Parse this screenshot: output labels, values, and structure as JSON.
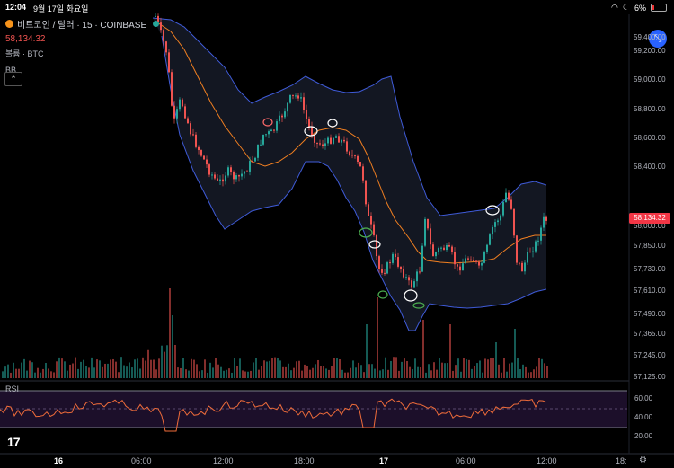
{
  "status_bar": {
    "time": "12:04",
    "date": "9월 17일 화요일",
    "battery": "6%"
  },
  "legend": {
    "symbol": "비트코인 / 달러 · 15 · COINBASE",
    "price": "58,134.32",
    "volume_label": "볼륨 · BTC",
    "bb_label": "BB"
  },
  "price_axis": {
    "ticks": [
      "59,200.00",
      "59,000.00",
      "58,800.00",
      "58,600.00",
      "58,400.00",
      "58,000.00",
      "57,850.00",
      "57,730.00",
      "57,610.00",
      "57,490.00",
      "57,365.00",
      "57,245.00",
      "57,125.00"
    ],
    "top_partial": "59,400.00",
    "last_price": "58,134.32"
  },
  "rsi": {
    "label": "RSI",
    "ticks": [
      "60.00",
      "40.00",
      "20.00"
    ]
  },
  "time_axis": {
    "labels": [
      "16",
      "06:00",
      "12:00",
      "18:00",
      "17",
      "06:00",
      "12:00",
      "18:"
    ]
  },
  "colors": {
    "up": "#26a69a",
    "down": "#ef5350",
    "band": "#3f5bd8",
    "basis": "#f07f21",
    "rsi_line": "#ef6c3a",
    "rsi_fill": "#1c0f2a"
  },
  "icons": {
    "fullscreen": "collapse-arrows-icon",
    "collapse": "chevron-up-icon",
    "settings": "gear-icon",
    "logo": "tradingview-logo"
  }
}
